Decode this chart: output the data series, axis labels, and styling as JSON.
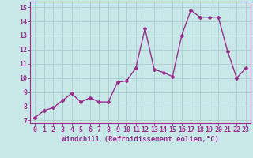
{
  "x": [
    0,
    1,
    2,
    3,
    4,
    5,
    6,
    7,
    8,
    9,
    10,
    11,
    12,
    13,
    14,
    15,
    16,
    17,
    18,
    19,
    20,
    21,
    22,
    23
  ],
  "y": [
    7.2,
    7.7,
    7.9,
    8.4,
    8.9,
    8.3,
    8.6,
    8.3,
    8.3,
    9.7,
    9.8,
    10.7,
    13.5,
    10.6,
    10.4,
    10.1,
    13.0,
    14.8,
    14.3,
    14.3,
    14.3,
    11.9,
    10.0,
    10.7
  ],
  "line_color": "#9b2d8e",
  "marker": "D",
  "marker_size": 2.0,
  "bg_color": "#c8e8e8",
  "grid_color": "#aacccc",
  "xlabel": "Windchill (Refroidissement éolien,°C)",
  "xlabel_fontsize": 6.5,
  "xtick_labels": [
    "0",
    "1",
    "2",
    "3",
    "4",
    "5",
    "6",
    "7",
    "8",
    "9",
    "10",
    "11",
    "12",
    "13",
    "14",
    "15",
    "16",
    "17",
    "18",
    "19",
    "20",
    "21",
    "22",
    "23"
  ],
  "ytick_labels": [
    "7",
    "8",
    "9",
    "10",
    "11",
    "12",
    "13",
    "14",
    "15"
  ],
  "ylim": [
    6.8,
    15.4
  ],
  "xlim": [
    -0.5,
    23.5
  ],
  "tick_color": "#9b2d8e",
  "tick_fontsize": 6.0,
  "linewidth": 1.0
}
